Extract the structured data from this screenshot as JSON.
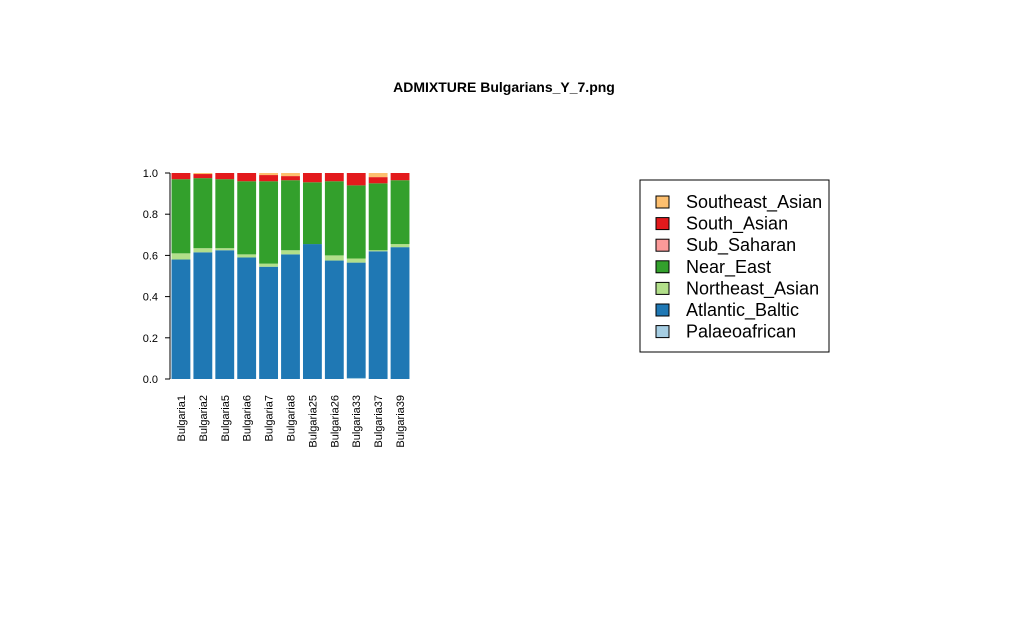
{
  "chart_data": {
    "type": "bar",
    "stacked": true,
    "title": "ADMIXTURE Bulgarians_Y_7.png",
    "xlabel": "",
    "ylabel": "",
    "ylim": [
      0,
      1
    ],
    "yticks": [
      "0.0",
      "0.2",
      "0.4",
      "0.6",
      "0.8",
      "1.0"
    ],
    "categories": [
      "Bulgaria1",
      "Bulgaria2",
      "Bulgaria5",
      "Bulgaria6",
      "Bulgaria7",
      "Bulgaria8",
      "Bulgaria25",
      "Bulgaria26",
      "Bulgaria33",
      "Bulgaria37",
      "Bulgaria39"
    ],
    "legend_position": "right",
    "series": [
      {
        "name": "Palaeoafrican",
        "color": "#a6cee3",
        "values": [
          0.0,
          0.0,
          0.0,
          0.0,
          0.0,
          0.0,
          0.0,
          0.0,
          0.005,
          0.0,
          0.0
        ]
      },
      {
        "name": "Atlantic_Baltic",
        "color": "#1f78b4",
        "values": [
          0.58,
          0.615,
          0.625,
          0.59,
          0.545,
          0.605,
          0.655,
          0.575,
          0.56,
          0.62,
          0.64
        ]
      },
      {
        "name": "Northeast_Asian",
        "color": "#b2df8a",
        "values": [
          0.03,
          0.02,
          0.01,
          0.015,
          0.015,
          0.02,
          0.0,
          0.025,
          0.02,
          0.005,
          0.015
        ]
      },
      {
        "name": "Near_East",
        "color": "#33a02c",
        "values": [
          0.36,
          0.34,
          0.335,
          0.355,
          0.4,
          0.34,
          0.3,
          0.36,
          0.355,
          0.325,
          0.31
        ]
      },
      {
        "name": "Sub_Saharan",
        "color": "#fb9a99",
        "values": [
          0.0,
          0.0,
          0.0,
          0.0,
          0.0,
          0.0,
          0.0,
          0.0,
          0.0,
          0.0,
          0.0
        ]
      },
      {
        "name": "South_Asian",
        "color": "#e31a1c",
        "values": [
          0.03,
          0.02,
          0.03,
          0.04,
          0.03,
          0.02,
          0.045,
          0.04,
          0.06,
          0.03,
          0.035
        ]
      },
      {
        "name": "Southeast_Asian",
        "color": "#fdbf6f",
        "values": [
          0.0,
          0.005,
          0.0,
          0.0,
          0.01,
          0.015,
          0.0,
          0.0,
          0.0,
          0.02,
          0.0
        ]
      }
    ],
    "legend_order": [
      "Southeast_Asian",
      "South_Asian",
      "Sub_Saharan",
      "Near_East",
      "Northeast_Asian",
      "Atlantic_Baltic",
      "Palaeoafrican"
    ]
  }
}
